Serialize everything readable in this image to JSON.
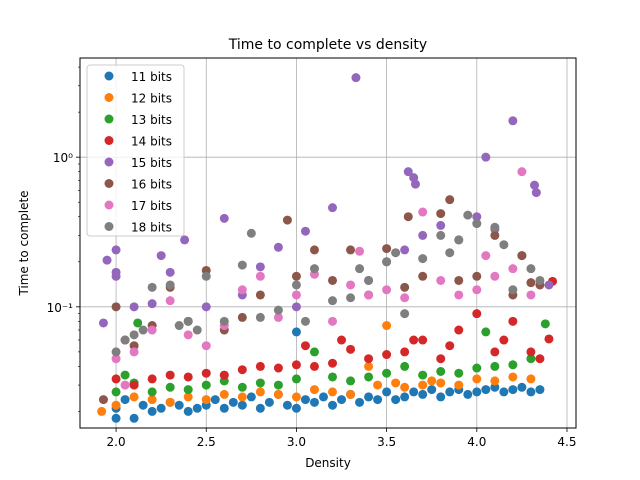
{
  "chart_data": {
    "type": "scatter",
    "title": "Time to complete vs density",
    "xlabel": "Density",
    "ylabel": "Time to complete",
    "xlim": [
      1.8,
      4.55
    ],
    "ylim": [
      0.0155,
      4.6
    ],
    "yscale": "log",
    "grid": true,
    "legend": "upper-left",
    "xticks": [
      2.0,
      2.5,
      3.0,
      3.5,
      4.0,
      4.5
    ],
    "xtick_labels": [
      "2.0",
      "2.5",
      "3.0",
      "3.5",
      "4.0",
      "4.5"
    ],
    "yticks": [
      0.1,
      1
    ],
    "ytick_labels": [
      "10⁻¹",
      "10⁰"
    ],
    "series": [
      {
        "name": "11 bits",
        "color": "#1f77b4",
        "points": [
          [
            2.0,
            0.018
          ],
          [
            2.0,
            0.021
          ],
          [
            2.05,
            0.024
          ],
          [
            2.1,
            0.018
          ],
          [
            2.15,
            0.022
          ],
          [
            2.2,
            0.02
          ],
          [
            2.25,
            0.021
          ],
          [
            2.3,
            0.023
          ],
          [
            2.35,
            0.022
          ],
          [
            2.4,
            0.02
          ],
          [
            2.45,
            0.021
          ],
          [
            2.5,
            0.022
          ],
          [
            2.55,
            0.024
          ],
          [
            2.6,
            0.021
          ],
          [
            2.65,
            0.023
          ],
          [
            2.7,
            0.022
          ],
          [
            2.75,
            0.025
          ],
          [
            2.8,
            0.021
          ],
          [
            2.85,
            0.023
          ],
          [
            2.9,
            0.026
          ],
          [
            2.95,
            0.022
          ],
          [
            3.0,
            0.021
          ],
          [
            3.0,
            0.068
          ],
          [
            3.05,
            0.024
          ],
          [
            3.1,
            0.023
          ],
          [
            3.15,
            0.025
          ],
          [
            3.2,
            0.022
          ],
          [
            3.25,
            0.024
          ],
          [
            3.3,
            0.026
          ],
          [
            3.35,
            0.023
          ],
          [
            3.4,
            0.025
          ],
          [
            3.45,
            0.024
          ],
          [
            3.5,
            0.027
          ],
          [
            3.55,
            0.024
          ],
          [
            3.6,
            0.025
          ],
          [
            3.65,
            0.027
          ],
          [
            3.7,
            0.026
          ],
          [
            3.75,
            0.028
          ],
          [
            3.8,
            0.025
          ],
          [
            3.85,
            0.027
          ],
          [
            3.9,
            0.028
          ],
          [
            3.95,
            0.026
          ],
          [
            4.0,
            0.027
          ],
          [
            4.05,
            0.028
          ],
          [
            4.1,
            0.029
          ],
          [
            4.15,
            0.027
          ],
          [
            4.2,
            0.028
          ],
          [
            4.25,
            0.029
          ],
          [
            4.3,
            0.027
          ],
          [
            4.35,
            0.028
          ]
        ]
      },
      {
        "name": "12 bits",
        "color": "#ff7f0e",
        "points": [
          [
            1.92,
            0.02
          ],
          [
            2.0,
            0.022
          ],
          [
            2.1,
            0.025
          ],
          [
            2.2,
            0.024
          ],
          [
            2.3,
            0.023
          ],
          [
            2.4,
            0.025
          ],
          [
            2.5,
            0.024
          ],
          [
            2.6,
            0.026
          ],
          [
            2.7,
            0.025
          ],
          [
            2.8,
            0.027
          ],
          [
            2.9,
            0.026
          ],
          [
            3.0,
            0.025
          ],
          [
            3.1,
            0.028
          ],
          [
            3.2,
            0.027
          ],
          [
            3.3,
            0.026
          ],
          [
            3.4,
            0.04
          ],
          [
            3.45,
            0.03
          ],
          [
            3.5,
            0.075
          ],
          [
            3.55,
            0.031
          ],
          [
            3.6,
            0.029
          ],
          [
            3.7,
            0.03
          ],
          [
            3.75,
            0.032
          ],
          [
            3.8,
            0.031
          ],
          [
            3.9,
            0.03
          ],
          [
            4.0,
            0.033
          ],
          [
            4.1,
            0.032
          ],
          [
            4.2,
            0.034
          ],
          [
            4.3,
            0.033
          ]
        ]
      },
      {
        "name": "13 bits",
        "color": "#2ca02c",
        "points": [
          [
            2.0,
            0.027
          ],
          [
            2.05,
            0.035
          ],
          [
            2.1,
            0.031
          ],
          [
            2.12,
            0.078
          ],
          [
            2.2,
            0.027
          ],
          [
            2.3,
            0.029
          ],
          [
            2.4,
            0.028
          ],
          [
            2.5,
            0.03
          ],
          [
            2.6,
            0.032
          ],
          [
            2.7,
            0.029
          ],
          [
            2.8,
            0.031
          ],
          [
            2.9,
            0.03
          ],
          [
            3.0,
            0.033
          ],
          [
            3.1,
            0.05
          ],
          [
            3.2,
            0.034
          ],
          [
            3.3,
            0.032
          ],
          [
            3.4,
            0.034
          ],
          [
            3.5,
            0.036
          ],
          [
            3.6,
            0.04
          ],
          [
            3.7,
            0.035
          ],
          [
            3.8,
            0.037
          ],
          [
            3.9,
            0.036
          ],
          [
            4.0,
            0.039
          ],
          [
            4.05,
            0.068
          ],
          [
            4.1,
            0.04
          ],
          [
            4.2,
            0.041
          ],
          [
            4.3,
            0.045
          ],
          [
            4.38,
            0.077
          ]
        ]
      },
      {
        "name": "14 bits",
        "color": "#d62728",
        "points": [
          [
            2.0,
            0.033
          ],
          [
            2.05,
            0.06
          ],
          [
            2.1,
            0.03
          ],
          [
            2.2,
            0.033
          ],
          [
            2.3,
            0.035
          ],
          [
            2.4,
            0.034
          ],
          [
            2.5,
            0.036
          ],
          [
            2.6,
            0.035
          ],
          [
            2.7,
            0.038
          ],
          [
            2.8,
            0.04
          ],
          [
            2.9,
            0.039
          ],
          [
            3.0,
            0.041
          ],
          [
            3.05,
            0.055
          ],
          [
            3.1,
            0.04
          ],
          [
            3.2,
            0.042
          ],
          [
            3.25,
            0.06
          ],
          [
            3.3,
            0.052
          ],
          [
            3.4,
            0.045
          ],
          [
            3.5,
            0.048
          ],
          [
            3.6,
            0.05
          ],
          [
            3.65,
            0.06
          ],
          [
            3.7,
            0.06
          ],
          [
            3.8,
            0.045
          ],
          [
            3.85,
            0.055
          ],
          [
            3.9,
            0.07
          ],
          [
            4.0,
            0.09
          ],
          [
            4.1,
            0.05
          ],
          [
            4.15,
            0.06
          ],
          [
            4.2,
            0.08
          ],
          [
            4.3,
            0.05
          ],
          [
            4.35,
            0.045
          ],
          [
            4.4,
            0.061
          ],
          [
            4.42,
            0.148
          ]
        ]
      },
      {
        "name": "15 bits",
        "color": "#9467bd",
        "points": [
          [
            1.93,
            0.078
          ],
          [
            1.95,
            0.205
          ],
          [
            2.0,
            0.24
          ],
          [
            2.0,
            0.17
          ],
          [
            2.0,
            0.16
          ],
          [
            2.1,
            0.1
          ],
          [
            2.2,
            0.105
          ],
          [
            2.25,
            0.22
          ],
          [
            2.3,
            0.17
          ],
          [
            2.38,
            0.28
          ],
          [
            2.5,
            0.1
          ],
          [
            2.6,
            0.39
          ],
          [
            2.7,
            0.12
          ],
          [
            2.8,
            0.185
          ],
          [
            2.9,
            0.25
          ],
          [
            3.0,
            0.1
          ],
          [
            3.05,
            0.32
          ],
          [
            3.2,
            0.46
          ],
          [
            3.33,
            3.4
          ],
          [
            3.4,
            0.15
          ],
          [
            3.5,
            0.2
          ],
          [
            3.6,
            0.24
          ],
          [
            3.62,
            0.8
          ],
          [
            3.65,
            0.73
          ],
          [
            3.66,
            0.66
          ],
          [
            3.7,
            0.3
          ],
          [
            3.8,
            0.35
          ],
          [
            3.9,
            0.28
          ],
          [
            4.0,
            0.4
          ],
          [
            4.05,
            1.0
          ],
          [
            4.1,
            0.33
          ],
          [
            4.2,
            1.75
          ],
          [
            4.25,
            0.22
          ],
          [
            4.32,
            0.65
          ],
          [
            4.33,
            0.58
          ],
          [
            4.4,
            0.14
          ]
        ]
      },
      {
        "name": "16 bits",
        "color": "#8c564b",
        "points": [
          [
            1.93,
            0.024
          ],
          [
            2.0,
            0.1
          ],
          [
            2.1,
            0.055
          ],
          [
            2.2,
            0.075
          ],
          [
            2.3,
            0.135
          ],
          [
            2.4,
            0.08
          ],
          [
            2.5,
            0.175
          ],
          [
            2.6,
            0.07
          ],
          [
            2.7,
            0.085
          ],
          [
            2.8,
            0.12
          ],
          [
            2.95,
            0.38
          ],
          [
            3.0,
            0.16
          ],
          [
            3.1,
            0.24
          ],
          [
            3.2,
            0.15
          ],
          [
            3.3,
            0.24
          ],
          [
            3.4,
            0.12
          ],
          [
            3.5,
            0.245
          ],
          [
            3.6,
            0.135
          ],
          [
            3.62,
            0.4
          ],
          [
            3.7,
            0.16
          ],
          [
            3.8,
            0.42
          ],
          [
            3.85,
            0.52
          ],
          [
            3.9,
            0.15
          ],
          [
            4.0,
            0.16
          ],
          [
            4.1,
            0.3
          ],
          [
            4.2,
            0.12
          ],
          [
            4.25,
            0.22
          ],
          [
            4.3,
            0.145
          ],
          [
            4.35,
            0.14
          ]
        ]
      },
      {
        "name": "17 bits",
        "color": "#e377c2",
        "points": [
          [
            2.0,
            0.045
          ],
          [
            2.05,
            0.03
          ],
          [
            2.1,
            0.05
          ],
          [
            2.2,
            0.07
          ],
          [
            2.3,
            0.11
          ],
          [
            2.4,
            0.065
          ],
          [
            2.5,
            0.055
          ],
          [
            2.6,
            0.075
          ],
          [
            2.7,
            0.13
          ],
          [
            2.8,
            0.16
          ],
          [
            2.9,
            0.085
          ],
          [
            3.0,
            0.12
          ],
          [
            3.1,
            0.165
          ],
          [
            3.2,
            0.08
          ],
          [
            3.3,
            0.14
          ],
          [
            3.35,
            0.235
          ],
          [
            3.4,
            0.12
          ],
          [
            3.5,
            0.13
          ],
          [
            3.6,
            0.115
          ],
          [
            3.7,
            0.43
          ],
          [
            3.8,
            0.15
          ],
          [
            3.9,
            0.12
          ],
          [
            4.0,
            0.13
          ],
          [
            4.05,
            0.22
          ],
          [
            4.1,
            0.16
          ],
          [
            4.2,
            0.18
          ],
          [
            4.25,
            0.8
          ],
          [
            4.3,
            0.12
          ]
        ]
      },
      {
        "name": "18 bits",
        "color": "#7f7f7f",
        "points": [
          [
            2.0,
            0.05
          ],
          [
            2.05,
            0.06
          ],
          [
            2.1,
            0.065
          ],
          [
            2.15,
            0.07
          ],
          [
            2.2,
            0.135
          ],
          [
            2.3,
            0.14
          ],
          [
            2.35,
            0.075
          ],
          [
            2.4,
            0.08
          ],
          [
            2.45,
            0.07
          ],
          [
            2.5,
            0.16
          ],
          [
            2.6,
            0.08
          ],
          [
            2.7,
            0.19
          ],
          [
            2.75,
            0.31
          ],
          [
            2.8,
            0.085
          ],
          [
            2.9,
            0.095
          ],
          [
            3.0,
            0.14
          ],
          [
            3.05,
            0.08
          ],
          [
            3.1,
            0.18
          ],
          [
            3.2,
            0.11
          ],
          [
            3.3,
            0.115
          ],
          [
            3.35,
            0.18
          ],
          [
            3.4,
            0.15
          ],
          [
            3.5,
            0.2
          ],
          [
            3.55,
            0.23
          ],
          [
            3.6,
            0.09
          ],
          [
            3.7,
            0.21
          ],
          [
            3.8,
            0.3
          ],
          [
            3.85,
            0.23
          ],
          [
            3.9,
            0.28
          ],
          [
            3.95,
            0.41
          ],
          [
            4.0,
            0.36
          ],
          [
            4.1,
            0.34
          ],
          [
            4.15,
            0.26
          ],
          [
            4.2,
            0.13
          ],
          [
            4.3,
            0.18
          ],
          [
            4.35,
            0.15
          ]
        ]
      }
    ]
  }
}
